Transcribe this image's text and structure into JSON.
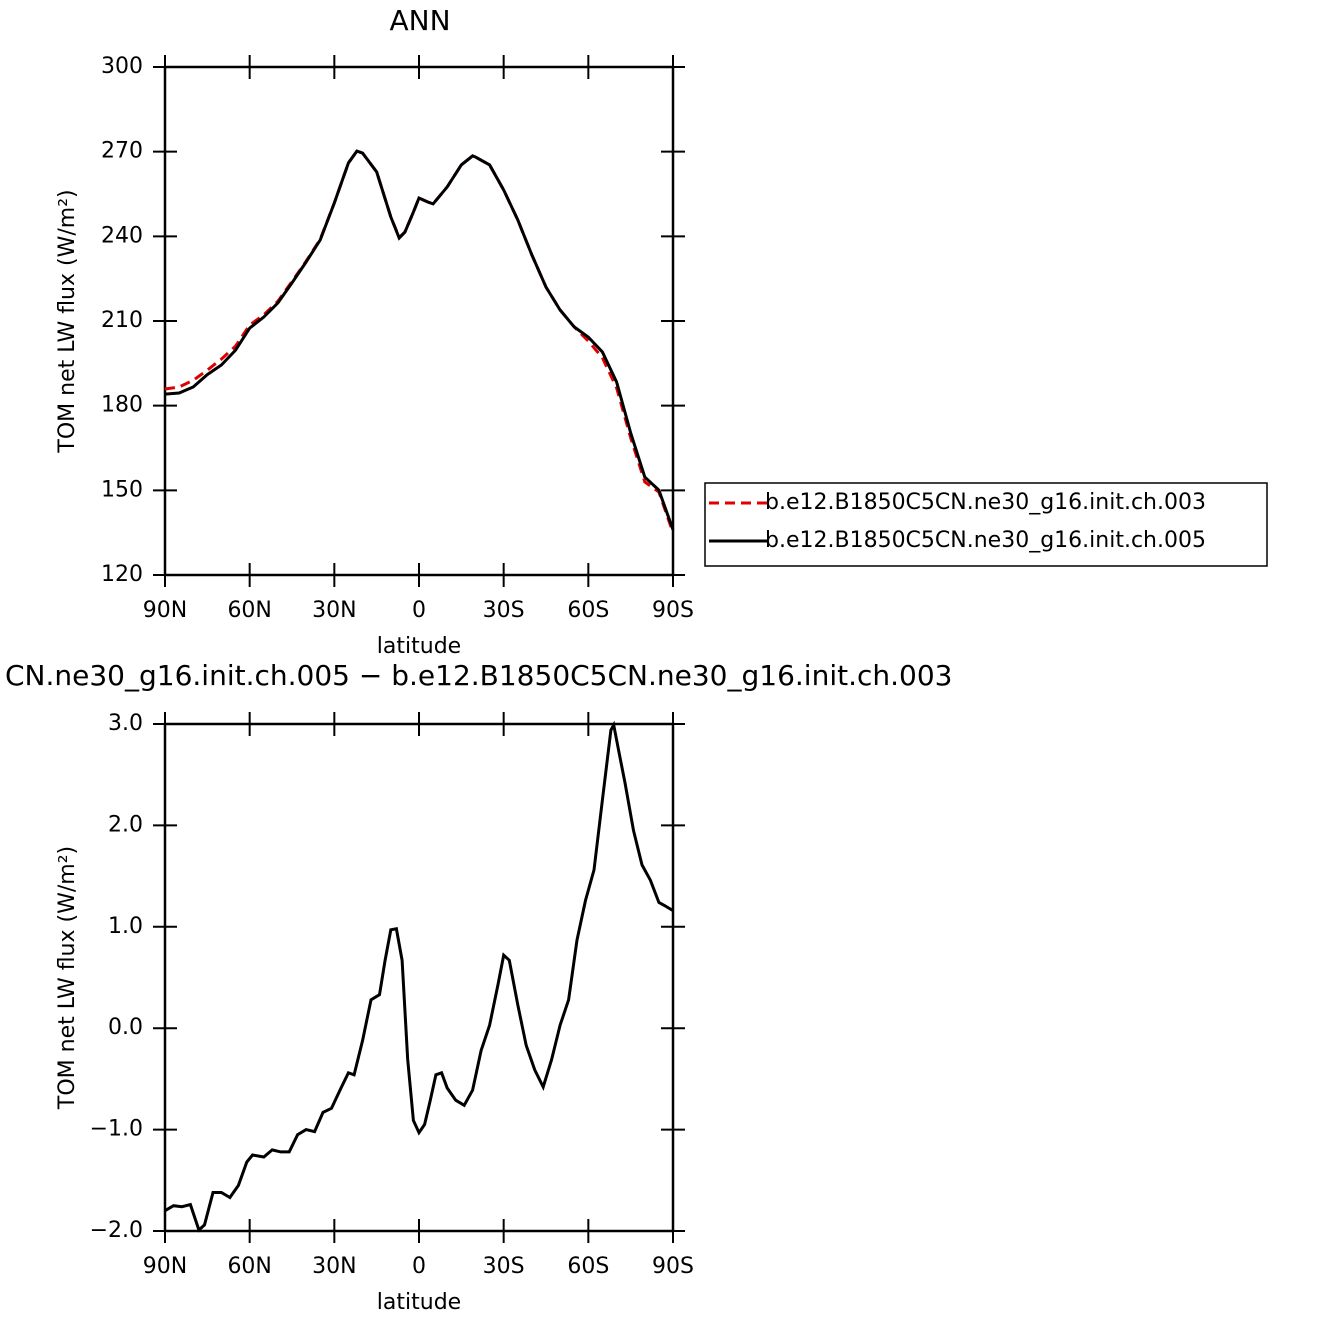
{
  "chart_data": [
    {
      "type": "line",
      "title": "ANN",
      "xlabel": "latitude",
      "ylabel": "TOM net LW flux (W/m²)",
      "x": [
        90,
        85,
        80,
        75,
        70,
        65,
        60,
        55,
        50,
        45,
        40,
        35,
        30,
        25,
        22,
        20,
        15,
        10,
        7,
        5,
        2,
        0,
        -3,
        -5,
        -10,
        -15,
        -19,
        -20,
        -25,
        -30,
        -35,
        -40,
        -45,
        -50,
        -55,
        -60,
        -65,
        -70,
        -75,
        -80,
        -85,
        -90
      ],
      "series": [
        {
          "name": "b.e12.B1850C5CN.ne30_g16.init.ch.003",
          "color": "#e00000",
          "style": "dashed",
          "values": [
            185.9,
            186.6,
            189,
            192.6,
            196.5,
            201.1,
            208.6,
            212.2,
            217,
            224,
            231.2,
            238.9,
            251.8,
            266,
            270.2,
            269.5,
            262.8,
            246.9,
            239.6,
            241.5,
            248.6,
            253.6,
            252.2,
            251.5,
            257.5,
            265.3,
            268.5,
            268.1,
            265.3,
            256.4,
            245.8,
            233.4,
            222,
            213.9,
            207.9,
            202.9,
            197,
            186.3,
            168.6,
            153,
            149.4,
            135
          ]
        },
        {
          "name": "b.e12.B1850C5CN.ne30_g16.init.ch.005",
          "color": "#000000",
          "style": "solid",
          "values": [
            184.1,
            184.5,
            186.6,
            191,
            194.4,
            199.7,
            207.5,
            211.4,
            216.4,
            223.5,
            230.9,
            238.7,
            251.8,
            266,
            270.2,
            269.5,
            262.8,
            246.9,
            239.4,
            241.5,
            248.6,
            253.6,
            252.2,
            251.5,
            257.5,
            265.3,
            268.5,
            268.1,
            265.3,
            256.4,
            245.8,
            233.4,
            222,
            213.9,
            207.9,
            204.3,
            199,
            188.4,
            170.3,
            154.7,
            150.1,
            136
          ]
        }
      ],
      "xlim": [
        90,
        -90
      ],
      "xticks": [
        {
          "value": 90,
          "label": "90N"
        },
        {
          "value": 60,
          "label": "60N"
        },
        {
          "value": 30,
          "label": "30N"
        },
        0,
        {
          "value": -30,
          "label": "30S"
        },
        {
          "value": -60,
          "label": "60S"
        },
        {
          "value": -90,
          "label": "90S"
        }
      ],
      "ylim": [
        120,
        300
      ],
      "yticks": [
        120,
        150,
        180,
        210,
        240,
        270,
        300
      ],
      "legend": "right"
    },
    {
      "type": "line",
      "title": "CN.ne30_g16.init.ch.005 − b.e12.B1850C5CN.ne30_g16.init.ch.003",
      "xlabel": "latitude",
      "ylabel": "TOM net LW flux (W/m²)",
      "x": [
        90,
        87,
        84,
        81,
        78,
        76,
        73,
        70,
        67,
        64,
        61,
        59,
        55,
        52,
        49,
        46,
        43,
        40,
        37,
        34,
        31,
        28,
        25,
        23,
        20,
        17,
        14,
        12,
        10,
        8,
        6,
        4,
        2,
        0,
        -2,
        -4,
        -6,
        -8,
        -10,
        -13,
        -16,
        -19,
        -22,
        -25,
        -28,
        -30,
        -32,
        -35,
        -38,
        -41,
        -44,
        -47,
        -50,
        -53,
        -56,
        -59,
        -62,
        -65,
        -68,
        -69,
        -71,
        -73,
        -76,
        -79,
        -82,
        -85,
        -87,
        -90
      ],
      "color": "#000000",
      "values": [
        -1.8,
        -1.75,
        -1.76,
        -1.74,
        -1.99,
        -1.94,
        -1.62,
        -1.62,
        -1.67,
        -1.55,
        -1.32,
        -1.25,
        -1.27,
        -1.2,
        -1.22,
        -1.22,
        -1.05,
        -1,
        -1.02,
        -0.83,
        -0.79,
        -0.61,
        -0.44,
        -0.46,
        -0.12,
        0.28,
        0.33,
        0.67,
        0.97,
        0.98,
        0.67,
        -0.31,
        -0.91,
        -1.03,
        -0.95,
        -0.71,
        -0.46,
        -0.44,
        -0.59,
        -0.71,
        -0.76,
        -0.61,
        -0.22,
        0.03,
        0.43,
        0.72,
        0.67,
        0.23,
        -0.17,
        -0.41,
        -0.58,
        -0.31,
        0.03,
        0.28,
        0.87,
        1.26,
        1.56,
        2.25,
        2.94,
        2.99,
        2.7,
        2.42,
        1.95,
        1.61,
        1.46,
        1.24,
        1.21,
        1.16
      ],
      "xlim": [
        90,
        -90
      ],
      "xticks": [
        {
          "value": 90,
          "label": "90N"
        },
        {
          "value": 60,
          "label": "60N"
        },
        {
          "value": 30,
          "label": "30N"
        },
        0,
        {
          "value": -30,
          "label": "30S"
        },
        {
          "value": -60,
          "label": "60S"
        },
        {
          "value": -90,
          "label": "90S"
        }
      ],
      "ylim": [
        -2,
        3
      ],
      "yticks": [
        {
          "value": -2,
          "label": "−2.0"
        },
        {
          "value": -1,
          "label": "−1.0"
        },
        {
          "value": 0,
          "label": "0.0"
        },
        {
          "value": 1,
          "label": "1.0"
        },
        {
          "value": 2,
          "label": "2.0"
        },
        {
          "value": 3,
          "label": "3.0"
        }
      ]
    }
  ]
}
